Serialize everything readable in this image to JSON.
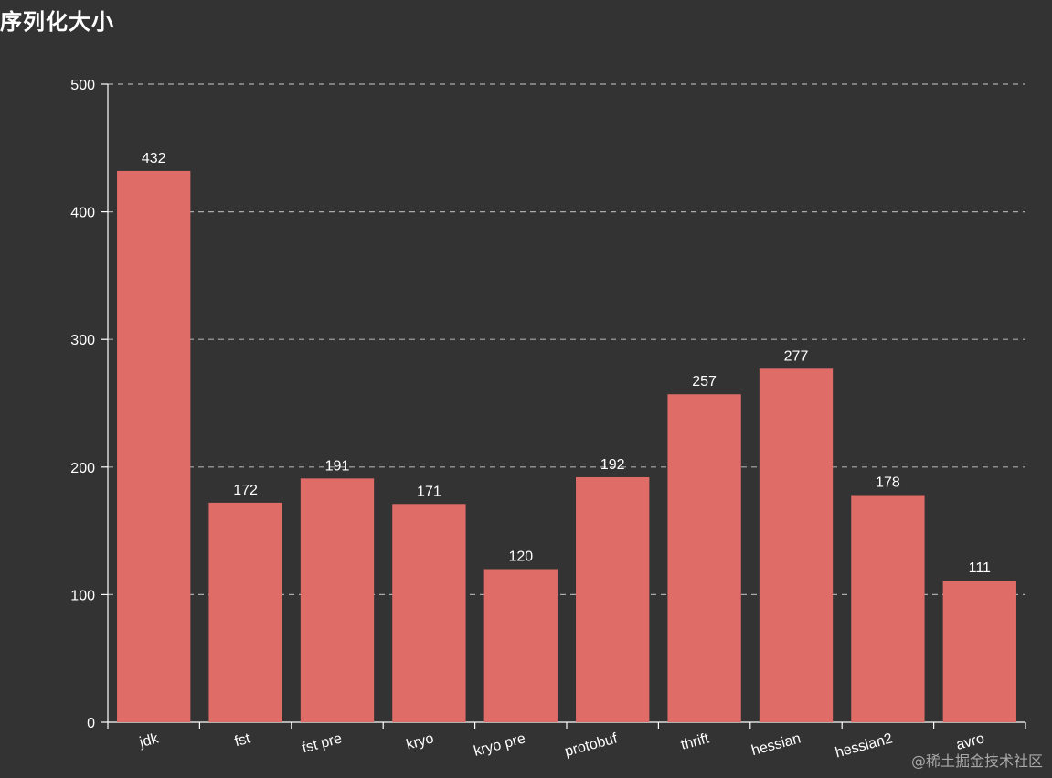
{
  "chart_data": {
    "type": "bar",
    "title": "序列化大小",
    "categories": [
      "jdk",
      "fst",
      "fst pre",
      "kryo",
      "kryo pre",
      "protobuf",
      "thrift",
      "hessian",
      "hessian2",
      "avro"
    ],
    "values": [
      432,
      172,
      191,
      171,
      120,
      192,
      257,
      277,
      178,
      111
    ],
    "ylim": [
      0,
      500
    ],
    "yticks": [
      0,
      100,
      200,
      300,
      400,
      500
    ],
    "grid": true,
    "bar_color": "#e06c68",
    "xlabel": "",
    "ylabel": ""
  },
  "colors": {
    "background": "#333333",
    "axis": "#ffffff",
    "grid": "#aaaaaa",
    "text": "#ffffff"
  },
  "watermark": "@稀土掘金技术社区"
}
